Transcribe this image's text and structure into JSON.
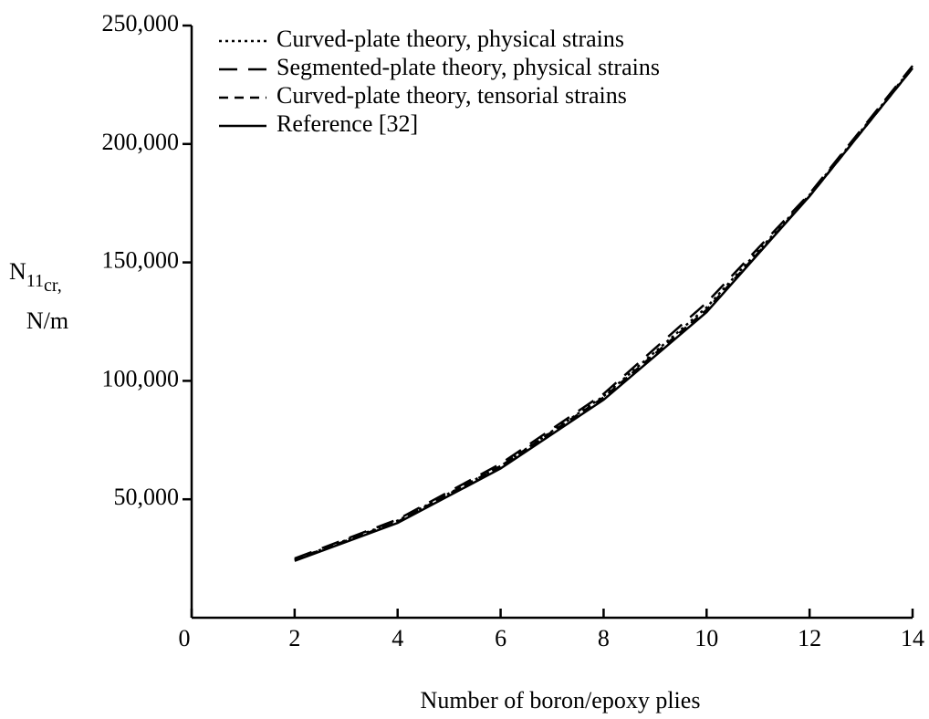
{
  "chart_data": {
    "type": "line",
    "x_label": "Number of boron/epoxy plies",
    "y_label": {
      "main": "N",
      "sub": "11",
      "subsub": "cr,",
      "unit": "N/m"
    },
    "x": [
      2,
      4,
      6,
      8,
      10,
      12,
      14
    ],
    "series": [
      {
        "name": "Curved-plate theory, physical strains",
        "color": "#000000",
        "dash": "dotted",
        "values": [
          24500,
          41000,
          64000,
          93500,
          131000,
          178500,
          232500
        ]
      },
      {
        "name": "Segmented-plate theory, physical strains",
        "color": "#000000",
        "dash": "long-dash",
        "values": [
          25000,
          41500,
          65000,
          94500,
          133000,
          179000,
          233000
        ]
      },
      {
        "name": "Curved-plate theory, tensorial strains",
        "color": "#000000",
        "dash": "dashed",
        "values": [
          24500,
          40500,
          64000,
          93000,
          130000,
          178000,
          232000
        ]
      },
      {
        "name": "Reference [32]",
        "color": "#000000",
        "dash": "solid",
        "values": [
          24000,
          40000,
          63000,
          92000,
          129000,
          178000,
          232000
        ]
      }
    ],
    "xlim": [
      0,
      14
    ],
    "ylim": [
      0,
      250000
    ],
    "xticks": [
      0,
      2,
      4,
      6,
      8,
      10,
      12,
      14
    ],
    "yticks": [
      {
        "value": 50000,
        "label": "50,000"
      },
      {
        "value": 100000,
        "label": "100,000"
      },
      {
        "value": 150000,
        "label": "150,000"
      },
      {
        "value": 200000,
        "label": "200,000"
      },
      {
        "value": 250000,
        "label": "250,000"
      }
    ],
    "legend": "top-left",
    "grid": false
  }
}
